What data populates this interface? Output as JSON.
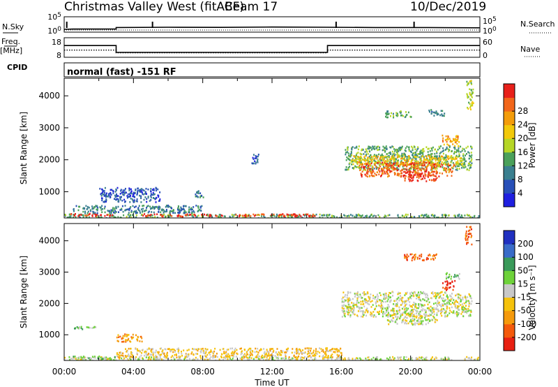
{
  "header": {
    "station": "Christmas Valley West (fitACF)",
    "beam": "Beam 17",
    "date": "10/Dec/2019"
  },
  "mode_text": "normal (fast) -151 RF",
  "labels": {
    "nsky": "N.Sky",
    "nsearch": "N.Search",
    "freq": "Freq.",
    "freq_unit": "[MHz]",
    "nave": "Nave",
    "cpid": "CPID",
    "slant_range": "Slant Range [km]",
    "time_axis": "Time UT",
    "power_cb": "Power [dB]",
    "velocity_cb": "Velocity [m s⁻¹]"
  },
  "colors": {
    "power": [
      "#1f1fe0",
      "#2850b8",
      "#3a7f8f",
      "#4aa05a",
      "#b6d626",
      "#f2c90a",
      "#f39c0a",
      "#f2661a",
      "#e8201a"
    ],
    "velocity": [
      "#e82012",
      "#f45a0c",
      "#f59a0c",
      "#f5c20c",
      "#c8c8c8",
      "#6ed23a",
      "#3a9a5a",
      "#3a6cc8",
      "#2030c0"
    ],
    "ground_scatter": "#c8c8c8"
  },
  "chart_data": [
    {
      "type": "line",
      "name": "noise",
      "x_ticks": [
        "00:00",
        "04:00",
        "08:00",
        "12:00",
        "16:00",
        "20:00",
        "00:00"
      ],
      "left_ticks": [
        "10^5",
        "10^0"
      ],
      "right_ticks": [
        "10^5",
        "10^0"
      ],
      "series": [
        {
          "name": "N.Sky",
          "x_hours": [
            0,
            0.5,
            3.0,
            3.0,
            6,
            9,
            12,
            15,
            18,
            21,
            24
          ],
          "y_frac": [
            0.18,
            0.2,
            0.2,
            0.3,
            0.32,
            0.31,
            0.33,
            0.32,
            0.3,
            0.3,
            0.28
          ]
        }
      ],
      "spikes_hours": [
        0.15,
        5.1,
        15.7,
        20.2
      ]
    },
    {
      "type": "line",
      "name": "frequency",
      "left_ticks": [
        "18",
        "8"
      ],
      "right_ticks": [
        "60",
        "0"
      ],
      "series": [
        {
          "name": "Freq.",
          "x_hours": [
            0,
            3.0,
            3.0,
            15.2,
            15.2,
            24
          ],
          "values_mhz": [
            14,
            14,
            10.5,
            10.5,
            14,
            14
          ]
        },
        {
          "name": "Nave",
          "x_hours": [
            0,
            3.0,
            3.0,
            15.2,
            15.2,
            24
          ],
          "values": [
            22,
            22,
            14,
            14,
            22,
            22
          ]
        }
      ]
    },
    {
      "type": "heatmap",
      "name": "power",
      "xlabel": "Time UT",
      "ylabel": "Slant Range [km]",
      "xlim_hours": [
        0,
        24
      ],
      "ylim_km": [
        180,
        4550
      ],
      "y_ticks": [
        1000,
        2000,
        3000,
        4000
      ],
      "colorbar_label": "Power [dB]",
      "colorbar_ticks": [
        4,
        8,
        12,
        16,
        20,
        24,
        28
      ],
      "regions": [
        {
          "t0": 0,
          "t1": 24,
          "r0": 200,
          "r1": 320,
          "level": 3
        },
        {
          "t0": 0.2,
          "t1": 3.0,
          "r0": 260,
          "r1": 340,
          "level": 8
        },
        {
          "t0": 4.5,
          "t1": 14.5,
          "r0": 250,
          "r1": 330,
          "level": 8
        },
        {
          "t0": 0.5,
          "t1": 8.0,
          "r0": 350,
          "r1": 600,
          "level": 2
        },
        {
          "t0": 2.0,
          "t1": 5.5,
          "r0": 700,
          "r1": 1150,
          "level": 1
        },
        {
          "t0": 7.5,
          "t1": 8.0,
          "r0": 850,
          "r1": 1050,
          "level": 2
        },
        {
          "t0": 10.8,
          "t1": 11.2,
          "r0": 1900,
          "r1": 2200,
          "level": 1
        },
        {
          "t0": 16.2,
          "t1": 23.5,
          "r0": 1700,
          "r1": 2450,
          "level": 3
        },
        {
          "t0": 16.5,
          "t1": 23.0,
          "r0": 1850,
          "r1": 2150,
          "level": 5
        },
        {
          "t0": 17.0,
          "t1": 22.5,
          "r0": 1500,
          "r1": 1950,
          "level": 7
        },
        {
          "t0": 19.5,
          "t1": 21.5,
          "r0": 1350,
          "r1": 1650,
          "level": 8
        },
        {
          "t0": 21.8,
          "t1": 22.8,
          "r0": 2450,
          "r1": 2800,
          "level": 6
        },
        {
          "t0": 21.0,
          "t1": 22.0,
          "r0": 3400,
          "r1": 3600,
          "level": 2
        },
        {
          "t0": 18.5,
          "t1": 20.0,
          "r0": 3350,
          "r1": 3550,
          "level": 3
        },
        {
          "t0": 23.2,
          "t1": 23.6,
          "r0": 3600,
          "r1": 4500,
          "level": 4
        }
      ]
    },
    {
      "type": "heatmap",
      "name": "velocity",
      "xlabel": "Time UT",
      "ylabel": "Slant Range [km]",
      "xlim_hours": [
        0,
        24
      ],
      "ylim_km": [
        180,
        4550
      ],
      "x_ticks": [
        "00:00",
        "04:00",
        "08:00",
        "12:00",
        "16:00",
        "20:00",
        "00:00"
      ],
      "y_ticks": [
        1000,
        2000,
        3000,
        4000
      ],
      "colorbar_label": "Velocity [m s⁻¹]",
      "colorbar_ticks": [
        200,
        100,
        50,
        15,
        -15,
        -50,
        -100,
        -200
      ],
      "regions": [
        {
          "t0": 0,
          "t1": 24,
          "r0": 200,
          "r1": 320,
          "level": 4
        },
        {
          "t0": 0.5,
          "t1": 3.0,
          "r0": 240,
          "r1": 340,
          "level": 5
        },
        {
          "t0": 3.0,
          "t1": 16.0,
          "r0": 300,
          "r1": 600,
          "level": 3
        },
        {
          "t0": 3.0,
          "t1": 4.5,
          "r0": 800,
          "r1": 1050,
          "level": 2
        },
        {
          "t0": 0.5,
          "t1": 2.0,
          "r0": 1200,
          "r1": 1300,
          "level": 5
        },
        {
          "t0": 16.0,
          "t1": 23.5,
          "r0": 1600,
          "r1": 2400,
          "level": 4
        },
        {
          "t0": 18.5,
          "t1": 21.5,
          "r0": 1350,
          "r1": 1700,
          "level": 4
        },
        {
          "t0": 21.8,
          "t1": 22.6,
          "r0": 2450,
          "r1": 2750,
          "level": 0
        },
        {
          "t0": 22.0,
          "t1": 22.8,
          "r0": 2800,
          "r1": 3000,
          "level": 5
        },
        {
          "t0": 19.5,
          "t1": 21.5,
          "r0": 3400,
          "r1": 3600,
          "level": 1
        },
        {
          "t0": 23.1,
          "t1": 23.5,
          "r0": 3900,
          "r1": 4500,
          "level": 1
        }
      ]
    }
  ]
}
